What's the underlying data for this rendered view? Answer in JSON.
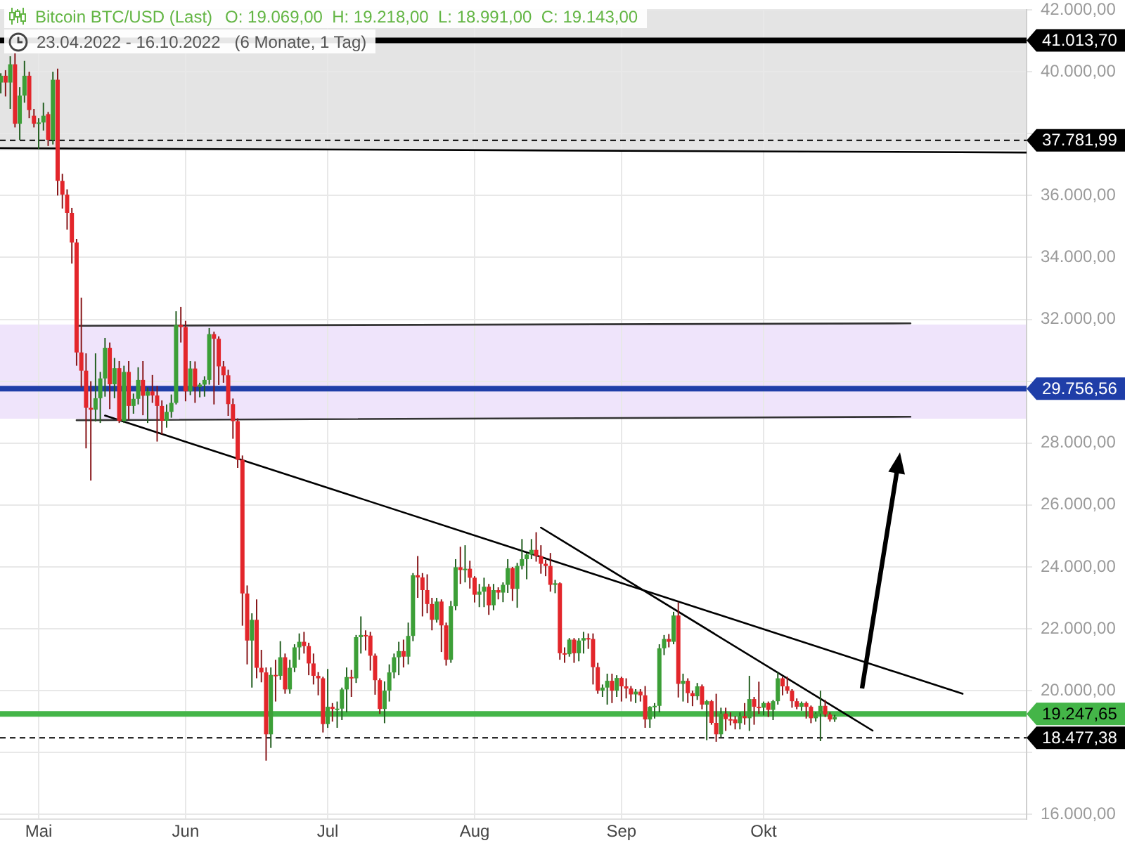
{
  "chart_data": {
    "type": "candlestick",
    "title": "Bitcoin BTC/USD (Last)",
    "subtitle": "23.04.2022 - 16.10.2022   (6 Monate, 1 Tag)",
    "annotations": [
      "O: 19.069,00  H: 19.218,00  L: 18.991,00  C: 19.143,00"
    ],
    "xlim": [
      "2022-04-22T20:00",
      "2022-11-25T12:00"
    ],
    "xticks": [
      {
        "value": "2022-05-01",
        "label": "Mai"
      },
      {
        "value": "2022-06-01",
        "label": "Jun"
      },
      {
        "value": "2022-07-01",
        "label": "Jul"
      },
      {
        "value": "2022-08-01",
        "label": "Aug"
      },
      {
        "value": "2022-09-01",
        "label": "Sep"
      },
      {
        "value": "2022-10-01",
        "label": "Okt"
      }
    ],
    "ylim": [
      15850,
      42000
    ],
    "yticks": [
      {
        "value": 16000,
        "label": "16.000,00"
      },
      {
        "value": 18000,
        "label": null
      },
      {
        "value": 20000,
        "label": "20.000,00"
      },
      {
        "value": 22000,
        "label": "22.000,00"
      },
      {
        "value": 24000,
        "label": "24.000,00"
      },
      {
        "value": 26000,
        "label": "26.000,00"
      },
      {
        "value": 28000,
        "label": "28.000,00"
      },
      {
        "value": 30000,
        "label": null
      },
      {
        "value": 32000,
        "label": "32.000,00"
      },
      {
        "value": 34000,
        "label": "34.000,00"
      },
      {
        "value": 36000,
        "label": "36.000,00"
      },
      {
        "value": 38000,
        "label": null
      },
      {
        "value": 40000,
        "label": "40.000,00"
      },
      {
        "value": 42000,
        "label": "42.000,00"
      }
    ],
    "grid": true,
    "bands": [
      {
        "axis": "y",
        "from": 37460,
        "to": 42000,
        "color": "#e4e4e4"
      },
      {
        "axis": "y",
        "from": 28790,
        "to": 31830,
        "color": "#efe4fb"
      }
    ],
    "ref_lines": [
      {
        "axis": "y",
        "value": 41013.7,
        "label": "41.013,70",
        "color": "#000000",
        "line_style": "solid"
      },
      {
        "axis": "y",
        "value": 37781.99,
        "label": "37.781,99",
        "color": "#000000",
        "line_style": "dashed"
      },
      {
        "axis": "y",
        "value": 29756.56,
        "label": "29.756,56",
        "color": "#1f3ea8",
        "line_style": "solid"
      },
      {
        "axis": "y",
        "value": 19247.65,
        "label": "19.247,65",
        "color": "#44b548",
        "line_style": "solid"
      },
      {
        "axis": "y",
        "value": 18477.38,
        "label": "18.477,38",
        "color": "#000000",
        "line_style": "dashed"
      }
    ],
    "series": [
      {
        "type": "candlestick",
        "x": [
          "2022-04-23",
          "2022-04-24",
          "2022-04-25",
          "2022-04-26",
          "2022-04-27",
          "2022-04-28",
          "2022-04-29",
          "2022-04-30",
          "2022-05-01",
          "2022-05-02",
          "2022-05-03",
          "2022-05-04",
          "2022-05-05",
          "2022-05-06",
          "2022-05-07",
          "2022-05-08",
          "2022-05-09",
          "2022-05-10",
          "2022-05-11",
          "2022-05-12",
          "2022-05-13",
          "2022-05-14",
          "2022-05-15",
          "2022-05-16",
          "2022-05-17",
          "2022-05-18",
          "2022-05-19",
          "2022-05-20",
          "2022-05-21",
          "2022-05-22",
          "2022-05-23",
          "2022-05-24",
          "2022-05-25",
          "2022-05-26",
          "2022-05-27",
          "2022-05-28",
          "2022-05-29",
          "2022-05-30",
          "2022-05-31",
          "2022-06-01",
          "2022-06-02",
          "2022-06-03",
          "2022-06-04",
          "2022-06-05",
          "2022-06-06",
          "2022-06-07",
          "2022-06-08",
          "2022-06-09",
          "2022-06-10",
          "2022-06-11",
          "2022-06-12",
          "2022-06-13",
          "2022-06-14",
          "2022-06-15",
          "2022-06-16",
          "2022-06-17",
          "2022-06-18",
          "2022-06-19",
          "2022-06-20",
          "2022-06-21",
          "2022-06-22",
          "2022-06-23",
          "2022-06-24",
          "2022-06-25",
          "2022-06-26",
          "2022-06-27",
          "2022-06-28",
          "2022-06-29",
          "2022-06-30",
          "2022-07-01",
          "2022-07-02",
          "2022-07-03",
          "2022-07-04",
          "2022-07-05",
          "2022-07-06",
          "2022-07-07",
          "2022-07-08",
          "2022-07-09",
          "2022-07-10",
          "2022-07-11",
          "2022-07-12",
          "2022-07-13",
          "2022-07-14",
          "2022-07-15",
          "2022-07-16",
          "2022-07-17",
          "2022-07-18",
          "2022-07-19",
          "2022-07-20",
          "2022-07-21",
          "2022-07-22",
          "2022-07-23",
          "2022-07-24",
          "2022-07-25",
          "2022-07-26",
          "2022-07-27",
          "2022-07-28",
          "2022-07-29",
          "2022-07-30",
          "2022-07-31",
          "2022-08-01",
          "2022-08-02",
          "2022-08-03",
          "2022-08-04",
          "2022-08-05",
          "2022-08-06",
          "2022-08-07",
          "2022-08-08",
          "2022-08-09",
          "2022-08-10",
          "2022-08-11",
          "2022-08-12",
          "2022-08-13",
          "2022-08-14",
          "2022-08-15",
          "2022-08-16",
          "2022-08-17",
          "2022-08-18",
          "2022-08-19",
          "2022-08-20",
          "2022-08-21",
          "2022-08-22",
          "2022-08-23",
          "2022-08-24",
          "2022-08-25",
          "2022-08-26",
          "2022-08-27",
          "2022-08-28",
          "2022-08-29",
          "2022-08-30",
          "2022-08-31",
          "2022-09-01",
          "2022-09-02",
          "2022-09-03",
          "2022-09-04",
          "2022-09-05",
          "2022-09-06",
          "2022-09-07",
          "2022-09-08",
          "2022-09-09",
          "2022-09-10",
          "2022-09-11",
          "2022-09-12",
          "2022-09-13",
          "2022-09-14",
          "2022-09-15",
          "2022-09-16",
          "2022-09-17",
          "2022-09-18",
          "2022-09-19",
          "2022-09-20",
          "2022-09-21",
          "2022-09-22",
          "2022-09-23",
          "2022-09-24",
          "2022-09-25",
          "2022-09-26",
          "2022-09-27",
          "2022-09-28",
          "2022-09-29",
          "2022-09-30",
          "2022-10-01",
          "2022-10-02",
          "2022-10-03",
          "2022-10-04",
          "2022-10-05",
          "2022-10-06",
          "2022-10-07",
          "2022-10-08",
          "2022-10-09",
          "2022-10-10",
          "2022-10-11",
          "2022-10-12",
          "2022-10-13",
          "2022-10-14",
          "2022-10-15",
          "2022-10-16"
        ],
        "ohlc": [
          [
            39650,
            39950,
            39300,
            39870
          ],
          [
            39870,
            40050,
            39200,
            39650
          ],
          [
            39650,
            40500,
            38800,
            40240
          ],
          [
            40240,
            40600,
            38200,
            38320
          ],
          [
            38320,
            39500,
            37800,
            39230
          ],
          [
            39230,
            40350,
            39000,
            39870
          ],
          [
            39870,
            40000,
            38500,
            38760
          ],
          [
            38580,
            38800,
            38200,
            38320
          ],
          [
            38320,
            38500,
            37500,
            38360
          ],
          [
            38360,
            39000,
            38100,
            38580
          ],
          [
            38630,
            38700,
            37600,
            37800
          ],
          [
            37800,
            40000,
            37650,
            39740
          ],
          [
            39740,
            40100,
            36000,
            36470
          ],
          [
            36470,
            36700,
            35580,
            36030
          ],
          [
            36030,
            36200,
            34900,
            35440
          ],
          [
            35440,
            35600,
            33800,
            34480
          ],
          [
            34480,
            34600,
            30500,
            30930
          ],
          [
            30930,
            32700,
            29800,
            30340
          ],
          [
            30340,
            30900,
            27830,
            29140
          ],
          [
            29140,
            30000,
            26790,
            29080
          ],
          [
            29080,
            30900,
            28700,
            29450
          ],
          [
            29450,
            30300,
            28650,
            30090
          ],
          [
            30090,
            31400,
            29500,
            31080
          ],
          [
            31080,
            31250,
            29100,
            29900
          ],
          [
            29900,
            30750,
            29450,
            30420
          ],
          [
            30420,
            30650,
            28650,
            28720
          ],
          [
            28720,
            30500,
            28650,
            30300
          ],
          [
            30300,
            30650,
            28750,
            29200
          ],
          [
            29200,
            29600,
            28950,
            29430
          ],
          [
            29430,
            30450,
            29250,
            30040
          ],
          [
            30040,
            30650,
            28900,
            29530
          ],
          [
            29530,
            29800,
            28650,
            29670
          ],
          [
            29670,
            30200,
            29300,
            29540
          ],
          [
            29540,
            29850,
            28050,
            29200
          ],
          [
            29200,
            29380,
            28280,
            28720
          ],
          [
            28720,
            29250,
            28500,
            29010
          ],
          [
            29010,
            29570,
            28820,
            29300
          ],
          [
            29300,
            32260,
            29250,
            31820
          ],
          [
            31820,
            32400,
            31250,
            31750
          ],
          [
            31750,
            31950,
            29350,
            29670
          ],
          [
            29670,
            30650,
            29550,
            30410
          ],
          [
            30410,
            30640,
            29300,
            29820
          ],
          [
            29820,
            29950,
            29480,
            29890
          ],
          [
            29890,
            30160,
            29500,
            30040
          ],
          [
            30040,
            31720,
            29890,
            31520
          ],
          [
            31520,
            31600,
            29250,
            31370
          ],
          [
            31370,
            31450,
            29880,
            30480
          ],
          [
            30480,
            30650,
            29950,
            30190
          ],
          [
            30190,
            30370,
            28880,
            29260
          ],
          [
            29260,
            29440,
            28140,
            28710
          ],
          [
            28710,
            28800,
            27200,
            27460
          ],
          [
            27460,
            27600,
            22100,
            23140
          ],
          [
            23140,
            23400,
            20850,
            21620
          ],
          [
            21620,
            22500,
            20100,
            22290
          ],
          [
            22290,
            22950,
            20400,
            20740
          ],
          [
            20740,
            21320,
            20270,
            20590
          ],
          [
            20590,
            20750,
            17740,
            18590
          ],
          [
            18590,
            20750,
            18150,
            20510
          ],
          [
            20510,
            21000,
            19650,
            20480
          ],
          [
            20480,
            21600,
            20350,
            21080
          ],
          [
            21080,
            21200,
            19900,
            20040
          ],
          [
            20040,
            21000,
            19900,
            20740
          ],
          [
            20740,
            21500,
            20600,
            21400
          ],
          [
            21400,
            21850,
            21000,
            21580
          ],
          [
            21580,
            21900,
            21200,
            21440
          ],
          [
            21440,
            21550,
            20500,
            20880
          ],
          [
            20880,
            21200,
            20200,
            20480
          ],
          [
            20480,
            20600,
            19850,
            20400
          ],
          [
            20400,
            20450,
            18650,
            18920
          ],
          [
            18920,
            20700,
            18800,
            19480
          ],
          [
            19480,
            19600,
            19000,
            19410
          ],
          [
            19410,
            19650,
            18800,
            19420
          ],
          [
            19420,
            20100,
            19050,
            20040
          ],
          [
            20040,
            20750,
            19300,
            20440
          ],
          [
            20440,
            20670,
            19800,
            20400
          ],
          [
            20400,
            21800,
            20250,
            21730
          ],
          [
            21730,
            22400,
            21200,
            21800
          ],
          [
            21800,
            21950,
            21300,
            21780
          ],
          [
            21780,
            21900,
            20650,
            21130
          ],
          [
            21130,
            21200,
            19870,
            20340
          ],
          [
            20340,
            20400,
            19250,
            19410
          ],
          [
            19410,
            20300,
            18950,
            20000
          ],
          [
            20000,
            20850,
            19650,
            20590
          ],
          [
            20590,
            21200,
            20400,
            21080
          ],
          [
            21080,
            21580,
            20500,
            21280
          ],
          [
            21280,
            21650,
            20750,
            21100
          ],
          [
            21100,
            22200,
            20850,
            21770
          ],
          [
            21770,
            23800,
            21600,
            23730
          ],
          [
            23730,
            24350,
            23000,
            23660
          ],
          [
            23660,
            23800,
            22400,
            23250
          ],
          [
            23250,
            23760,
            22500,
            22800
          ],
          [
            22800,
            23000,
            21950,
            22290
          ],
          [
            22290,
            23000,
            22200,
            22880
          ],
          [
            22880,
            22950,
            21250,
            22110
          ],
          [
            22110,
            22200,
            20810,
            21000
          ],
          [
            21000,
            22900,
            20900,
            22730
          ],
          [
            22730,
            24250,
            22600,
            23990
          ],
          [
            23990,
            24650,
            23450,
            23900
          ],
          [
            23900,
            24700,
            23500,
            23940
          ],
          [
            23940,
            24200,
            23300,
            23650
          ],
          [
            23650,
            23700,
            22850,
            23100
          ],
          [
            23100,
            23450,
            22700,
            23200
          ],
          [
            23200,
            23650,
            22700,
            23360
          ],
          [
            23360,
            23450,
            22450,
            22760
          ],
          [
            22760,
            23450,
            22600,
            23250
          ],
          [
            23250,
            23340,
            22950,
            23170
          ],
          [
            23170,
            23500,
            22860,
            23420
          ],
          [
            23420,
            24250,
            23160,
            23960
          ],
          [
            23960,
            24000,
            22900,
            23290
          ],
          [
            23290,
            24130,
            22680,
            24030
          ],
          [
            24030,
            24900,
            23920,
            24250
          ],
          [
            24250,
            24450,
            23600,
            24400
          ],
          [
            24400,
            24900,
            24250,
            24550
          ],
          [
            24550,
            25120,
            24170,
            24350
          ],
          [
            24350,
            24700,
            23780,
            24100
          ],
          [
            24100,
            24230,
            23700,
            24030
          ],
          [
            24030,
            24450,
            23200,
            23420
          ],
          [
            23420,
            23580,
            23150,
            23470
          ],
          [
            23470,
            23500,
            21000,
            21210
          ],
          [
            21210,
            21400,
            20900,
            21180
          ],
          [
            21180,
            21700,
            21100,
            21650
          ],
          [
            21650,
            21700,
            20900,
            21210
          ],
          [
            21210,
            21700,
            20950,
            21620
          ],
          [
            21620,
            21900,
            21200,
            21700
          ],
          [
            21700,
            21850,
            21350,
            21670
          ],
          [
            21670,
            21850,
            20200,
            20760
          ],
          [
            20760,
            20900,
            19900,
            20000
          ],
          [
            20000,
            20200,
            19800,
            20100
          ],
          [
            20100,
            20550,
            19550,
            20320
          ],
          [
            20320,
            20550,
            19600,
            20000
          ],
          [
            20000,
            20500,
            19800,
            20410
          ],
          [
            20410,
            20450,
            19650,
            20140
          ],
          [
            20140,
            20400,
            19750,
            20070
          ],
          [
            20070,
            20150,
            19650,
            19880
          ],
          [
            19880,
            20050,
            19600,
            19970
          ],
          [
            19970,
            20050,
            19650,
            19850
          ],
          [
            19850,
            20150,
            18800,
            19070
          ],
          [
            19070,
            19500,
            18800,
            19480
          ],
          [
            19480,
            19600,
            19100,
            19510
          ],
          [
            19510,
            21500,
            19300,
            21370
          ],
          [
            21370,
            21800,
            21150,
            21670
          ],
          [
            21670,
            21830,
            21400,
            21580
          ],
          [
            21580,
            22550,
            21500,
            22430
          ],
          [
            22430,
            22850,
            19780,
            20220
          ],
          [
            20220,
            20550,
            19650,
            20320
          ],
          [
            20320,
            20400,
            19600,
            19920
          ],
          [
            19920,
            20000,
            19500,
            19820
          ],
          [
            19820,
            20250,
            19700,
            20140
          ],
          [
            20140,
            20200,
            19400,
            19550
          ],
          [
            19550,
            19700,
            18400,
            19660
          ],
          [
            19660,
            19700,
            18900,
            18960
          ],
          [
            18960,
            19900,
            18350,
            18590
          ],
          [
            18590,
            19450,
            18500,
            19260
          ],
          [
            19260,
            19450,
            18700,
            19080
          ],
          [
            19080,
            19300,
            18880,
            19070
          ],
          [
            19070,
            19180,
            18750,
            18950
          ],
          [
            18950,
            19300,
            18750,
            19180
          ],
          [
            19180,
            19600,
            18900,
            19110
          ],
          [
            19110,
            20480,
            18700,
            19730
          ],
          [
            19730,
            19800,
            18900,
            19480
          ],
          [
            19480,
            20290,
            19250,
            19450
          ],
          [
            19450,
            19650,
            19200,
            19600
          ],
          [
            19600,
            19650,
            19150,
            19380
          ],
          [
            19380,
            19700,
            19050,
            19660
          ],
          [
            19660,
            20590,
            19550,
            20400
          ],
          [
            20400,
            20450,
            19850,
            20140
          ],
          [
            20140,
            20450,
            19900,
            20000
          ],
          [
            20000,
            20050,
            19450,
            19660
          ],
          [
            19660,
            19750,
            19400,
            19480
          ],
          [
            19480,
            19650,
            19350,
            19600
          ],
          [
            19600,
            19650,
            19100,
            19480
          ],
          [
            19480,
            19520,
            18950,
            19110
          ],
          [
            19110,
            19300,
            19000,
            19260
          ],
          [
            19260,
            20000,
            18370,
            19510
          ],
          [
            19510,
            19700,
            19150,
            19230
          ],
          [
            19230,
            19300,
            19000,
            19069
          ],
          [
            19069,
            19218,
            18991,
            19143
          ]
        ],
        "colors": [
          "#3c9f37",
          "#e3262b",
          "#3c9f37",
          "#e3262b",
          "#3c9f37",
          "#3c9f37",
          "#e3262b",
          "#e3262b",
          "#3c9f37",
          "#3c9f37",
          "#e3262b",
          "#3c9f37",
          "#e3262b",
          "#e3262b",
          "#e3262b",
          "#e3262b",
          "#e3262b",
          "#e3262b",
          "#e3262b",
          "#e3262b",
          "#3c9f37",
          "#3c9f37",
          "#3c9f37",
          "#e3262b",
          "#3c9f37",
          "#e3262b",
          "#3c9f37",
          "#e3262b",
          "#3c9f37",
          "#3c9f37",
          "#e3262b",
          "#3c9f37",
          "#e3262b",
          "#e3262b",
          "#e3262b",
          "#3c9f37",
          "#3c9f37",
          "#3c9f37",
          "#e3262b",
          "#e3262b",
          "#3c9f37",
          "#e3262b",
          "#3c9f37",
          "#3c9f37",
          "#3c9f37",
          "#e3262b",
          "#e3262b",
          "#e3262b",
          "#e3262b",
          "#e3262b",
          "#e3262b",
          "#e3262b",
          "#e3262b",
          "#3c9f37",
          "#e3262b",
          "#e3262b",
          "#e3262b",
          "#3c9f37",
          "#e3262b",
          "#3c9f37",
          "#e3262b",
          "#3c9f37",
          "#3c9f37",
          "#3c9f37",
          "#e3262b",
          "#e3262b",
          "#e3262b",
          "#e3262b",
          "#e3262b",
          "#3c9f37",
          "#e3262b",
          "#3c9f37",
          "#3c9f37",
          "#3c9f37",
          "#e3262b",
          "#3c9f37",
          "#3c9f37",
          "#e3262b",
          "#e3262b",
          "#e3262b",
          "#e3262b",
          "#3c9f37",
          "#3c9f37",
          "#3c9f37",
          "#3c9f37",
          "#e3262b",
          "#3c9f37",
          "#3c9f37",
          "#e3262b",
          "#e3262b",
          "#e3262b",
          "#e3262b",
          "#3c9f37",
          "#e3262b",
          "#e3262b",
          "#3c9f37",
          "#3c9f37",
          "#e3262b",
          "#3c9f37",
          "#e3262b",
          "#e3262b",
          "#3c9f37",
          "#3c9f37",
          "#e3262b",
          "#3c9f37",
          "#e3262b",
          "#3c9f37",
          "#3c9f37",
          "#e3262b",
          "#3c9f37",
          "#3c9f37",
          "#3c9f37",
          "#3c9f37",
          "#e3262b",
          "#e3262b",
          "#e3262b",
          "#e3262b",
          "#3c9f37",
          "#e3262b",
          "#e3262b",
          "#3c9f37",
          "#e3262b",
          "#3c9f37",
          "#3c9f37",
          "#e3262b",
          "#e3262b",
          "#e3262b",
          "#3c9f37",
          "#3c9f37",
          "#e3262b",
          "#3c9f37",
          "#e3262b",
          "#e3262b",
          "#e3262b",
          "#3c9f37",
          "#e3262b",
          "#e3262b",
          "#3c9f37",
          "#3c9f37",
          "#3c9f37",
          "#3c9f37",
          "#e3262b",
          "#3c9f37",
          "#e3262b",
          "#3c9f37",
          "#e3262b",
          "#e3262b",
          "#3c9f37",
          "#e3262b",
          "#3c9f37",
          "#e3262b",
          "#e3262b",
          "#3c9f37",
          "#e3262b",
          "#e3262b",
          "#e3262b",
          "#3c9f37",
          "#e3262b",
          "#3c9f37",
          "#e3262b",
          "#e3262b",
          "#3c9f37",
          "#e3262b",
          "#3c9f37",
          "#3c9f37",
          "#e3262b",
          "#e3262b",
          "#e3262b",
          "#e3262b",
          "#3c9f37",
          "#e3262b",
          "#e3262b",
          "#3c9f37",
          "#3c9f37",
          "#e3262b",
          "#e3262b",
          "#3c9f37"
        ]
      },
      {
        "type": "line",
        "x": [
          "2022-04-22T20:00",
          "2022-11-25T12:00"
        ],
        "values": [
          37530,
          37390
        ],
        "color": "#000000"
      },
      {
        "type": "line",
        "x": [
          "2022-05-09",
          "2022-11-01"
        ],
        "values": [
          31790,
          31870
        ],
        "color": "#333333"
      },
      {
        "type": "line",
        "x": [
          "2022-05-09",
          "2022-11-01"
        ],
        "values": [
          28740,
          28850
        ],
        "color": "#333333"
      },
      {
        "type": "line",
        "x": [
          "2022-05-15",
          "2022-11-12"
        ],
        "values": [
          28890,
          19900
        ],
        "color": "#000000"
      },
      {
        "type": "line",
        "x": [
          "2022-08-15",
          "2022-10-24"
        ],
        "values": [
          25270,
          18710
        ],
        "color": "#000000"
      }
    ]
  }
}
